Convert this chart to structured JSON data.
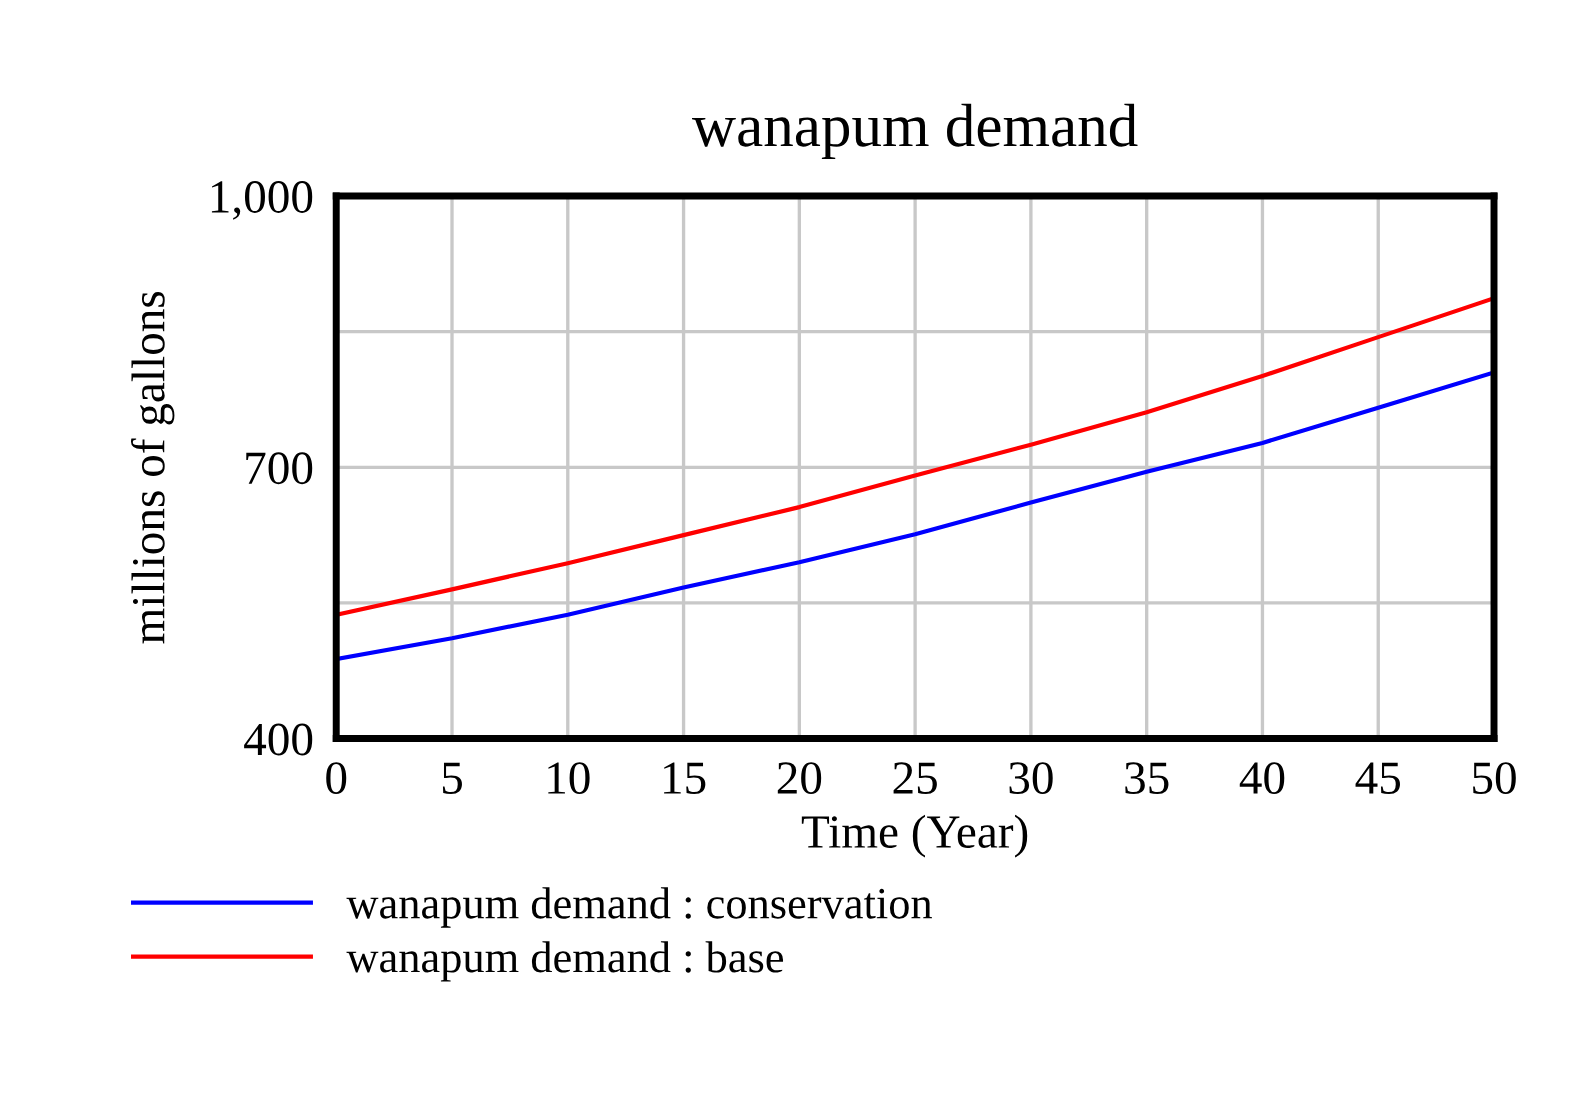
{
  "chart_data": {
    "type": "line",
    "title": "wanapum demand",
    "xlabel": "Time (Year)",
    "ylabel": "millions of gallons",
    "x": [
      0,
      5,
      10,
      15,
      20,
      25,
      30,
      35,
      40,
      45,
      50
    ],
    "series": [
      {
        "name": "wanapum demand : conservation",
        "color": "#0000ff",
        "values": [
          488,
          511,
          537,
          567,
          595,
          626,
          661,
          695,
          727,
          766,
          805
        ]
      },
      {
        "name": "wanapum demand : base",
        "color": "#ff0000",
        "values": [
          537,
          565,
          594,
          625,
          656,
          691,
          725,
          761,
          801,
          844,
          887
        ]
      }
    ],
    "xlim": [
      0,
      50
    ],
    "xticks": [
      0,
      5,
      10,
      15,
      20,
      25,
      30,
      35,
      40,
      45,
      50
    ],
    "ylim": [
      400,
      1000
    ],
    "yticks": [
      400,
      {
        "value": 550,
        "label": null
      },
      700,
      {
        "value": 850,
        "label": null
      },
      {
        "value": 1000,
        "label": "1,000"
      }
    ],
    "grid": true,
    "legend": "bottom",
    "marker": "none",
    "line_style": "solid"
  }
}
